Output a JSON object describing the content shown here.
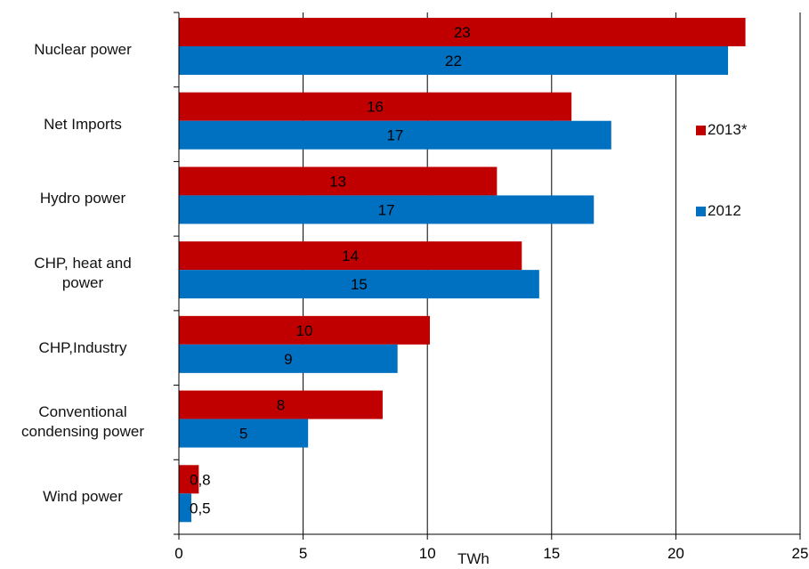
{
  "chart_data": {
    "type": "bar",
    "orientation": "horizontal",
    "categories": [
      "Nuclear power",
      "Net Imports",
      "Hydro power",
      "CHP, heat and power",
      "CHP,Industry",
      "Conventional condensing power",
      "Wind power"
    ],
    "category_lines": [
      [
        "Nuclear power"
      ],
      [
        "Net Imports"
      ],
      [
        "Hydro power"
      ],
      [
        "CHP, heat and",
        "power"
      ],
      [
        "CHP,Industry"
      ],
      [
        "Conventional",
        "condensing power"
      ],
      [
        "Wind power"
      ]
    ],
    "series": [
      {
        "name": "2013*",
        "color": "#c00000",
        "values": [
          22.8,
          15.8,
          12.8,
          13.8,
          10.1,
          8.2,
          0.8
        ],
        "labels": [
          "23",
          "16",
          "13",
          "14",
          "10",
          "8",
          "0,8"
        ]
      },
      {
        "name": "2012",
        "color": "#0070c0",
        "values": [
          22.1,
          17.4,
          16.7,
          14.5,
          8.8,
          5.2,
          0.5
        ],
        "labels": [
          "22",
          "17",
          "17",
          "15",
          "9",
          "5",
          "0,5"
        ]
      }
    ],
    "xlabel": "TWh",
    "xlim": [
      0,
      25
    ],
    "xticks": [
      0,
      5,
      10,
      15,
      20,
      25
    ],
    "grid": "vertical",
    "legend_position": "right"
  }
}
